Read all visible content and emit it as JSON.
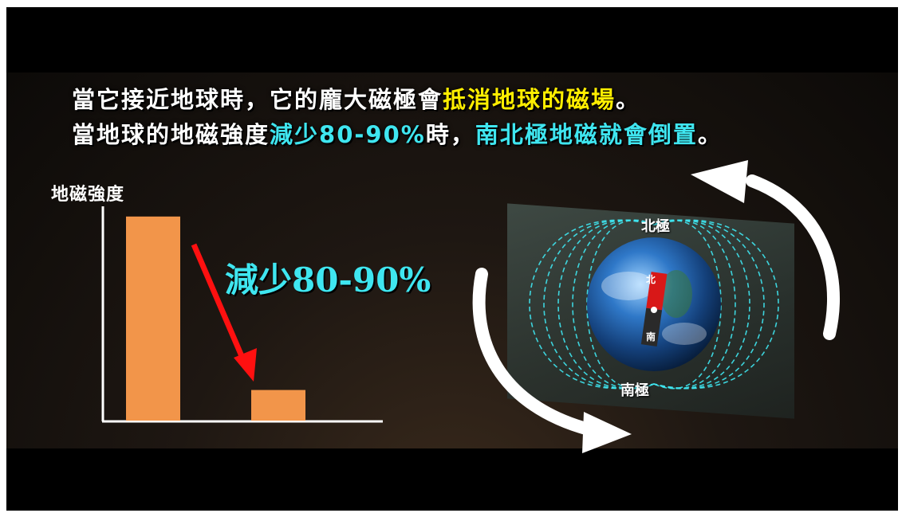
{
  "headline": {
    "line1_white_1": "當它接近地球時，它的龐大磁極會",
    "line1_yellow": "抵消地球的磁場",
    "line1_white_2": "。",
    "line2_white_1": "當地球的地磁強度",
    "line2_cyan_1": "減少80-90%",
    "line2_white_2": "時，",
    "line2_cyan_2": "南北極地磁就會倒置",
    "line2_white_3": "。"
  },
  "colors": {
    "bar": "#f2954a",
    "arrow": "#ff1010",
    "accent_cyan": "#3fe6f0",
    "accent_yellow": "#ffee00",
    "field_lines": "#3fe6f0"
  },
  "chart_data": {
    "type": "bar",
    "ylabel": "地磁強度",
    "categories": [
      "",
      ""
    ],
    "values": [
      100,
      15
    ],
    "ylim": [
      0,
      105
    ],
    "grid": false,
    "annotation": "減少80-90%"
  },
  "earth": {
    "north_label": "北極",
    "south_label": "南極",
    "magnet_north": "北",
    "magnet_south": "南"
  }
}
